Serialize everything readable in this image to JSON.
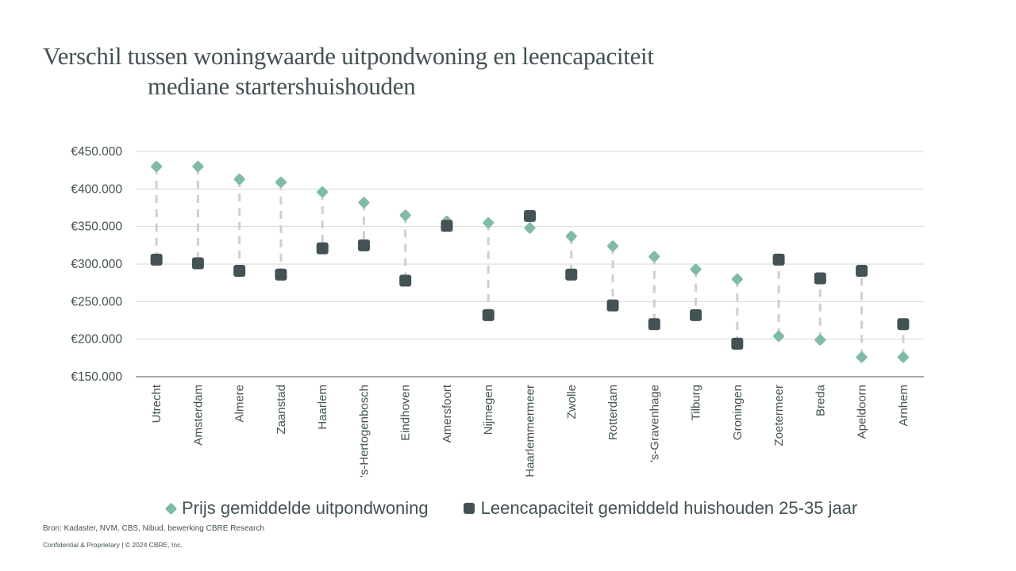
{
  "title_line1": "Verschil tussen woningwaarde uitpondwoning en leencapaciteit",
  "title_line2": "mediane startershuishouden",
  "source": "Bron: Kadaster, NVM, CBS, Nibud, bewerking CBRE Research",
  "confidential": "Confidential & Proprietary | © 2024 CBRE, Inc.",
  "colors": {
    "prijs": "#80BBA7",
    "leencapaciteit": "#435254",
    "connector": "#CAD1D3",
    "grid": "#D5D9DA",
    "text": "#435254"
  },
  "chart_data": {
    "type": "dumbbell",
    "categories": [
      "Utrecht",
      "Amsterdam",
      "Almere",
      "Zaanstad",
      "Haarlem",
      "'s-Hertogenbosch",
      "Eindhoven",
      "Amersfoort",
      "Nijmegen",
      "Haarlemmermeer",
      "Zwolle",
      "Rotterdam",
      "'s-Gravenhage",
      "Tilburg",
      "Groningen",
      "Zoetermeer",
      "Breda",
      "Apeldoorn",
      "Arnhem"
    ],
    "series": [
      {
        "name": "Prijs gemiddelde uitpondwoning",
        "marker": "diamond",
        "values": [
          430000,
          430000,
          413000,
          409000,
          396000,
          382000,
          365000,
          357000,
          355000,
          348000,
          337000,
          324000,
          310000,
          293000,
          280000,
          204000,
          199000,
          176000,
          176000
        ]
      },
      {
        "name": "Leencapaciteit gemiddeld huishouden 25-35 jaar",
        "marker": "square",
        "values": [
          306000,
          301000,
          291000,
          286000,
          321000,
          325000,
          278000,
          351000,
          232000,
          364000,
          286000,
          245000,
          220000,
          232000,
          194000,
          306000,
          281000,
          291000,
          220000
        ]
      }
    ],
    "ylim": [
      150000,
      450000
    ],
    "yticks": [
      150000,
      200000,
      250000,
      300000,
      350000,
      400000,
      450000
    ],
    "ytick_labels": [
      "€150.000",
      "€200.000",
      "€250.000",
      "€300.000",
      "€350.000",
      "€400.000",
      "€450.000"
    ],
    "grid": true,
    "legend_position": "bottom"
  }
}
